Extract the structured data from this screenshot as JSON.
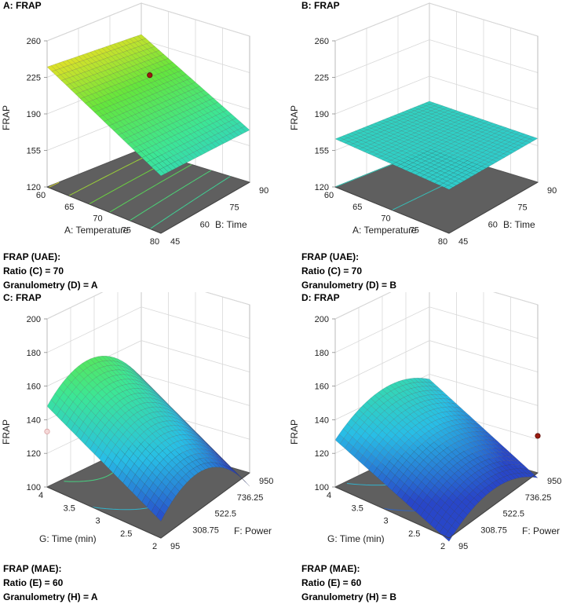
{
  "chart_data": [
    {
      "type": "surface3d",
      "title": "A: FRAP",
      "zlabel": "FRAP",
      "xlabel": "A: Temperature",
      "ylabel": "B: Time",
      "zlim": [
        120,
        260
      ],
      "z_ticks": [
        "120",
        "155",
        "190",
        "225",
        "260"
      ],
      "x_ticks": [
        "60",
        "65",
        "70",
        "75",
        "80"
      ],
      "y_ticks": [
        "45",
        "60",
        "75",
        "90"
      ],
      "xlim": [
        60,
        80
      ],
      "ylim": [
        45,
        90
      ],
      "surface": {
        "base": 235,
        "ax": -60,
        "ay": -5,
        "axx": 0,
        "ayy": 0,
        "axy": 0
      },
      "design_points": [
        {
          "x": 70,
          "y": 67.5,
          "z": 228
        }
      ],
      "caption": [
        "FRAP (UAE):",
        "Ratio (C) = 70",
        "Granulometry (D) = A"
      ]
    },
    {
      "type": "surface3d",
      "title": "B: FRAP",
      "zlabel": "FRAP",
      "xlabel": "A: Temperature",
      "ylabel": "B: Time",
      "zlim": [
        120,
        260
      ],
      "z_ticks": [
        "120",
        "155",
        "190",
        "225",
        "260"
      ],
      "x_ticks": [
        "60",
        "65",
        "70",
        "75",
        "80"
      ],
      "y_ticks": [
        "45",
        "60",
        "75",
        "90"
      ],
      "xlim": [
        60,
        80
      ],
      "ylim": [
        45,
        90
      ],
      "surface": {
        "base": 166,
        "ax": -4,
        "ay": 0,
        "axx": 0,
        "ayy": 0,
        "axy": 0
      },
      "design_points": [],
      "caption": [
        "FRAP (UAE):",
        "Ratio (C) = 70",
        "Granulometry (D) = B"
      ]
    },
    {
      "type": "surface3d",
      "title": "C: FRAP",
      "zlabel": "FRAP",
      "xlabel": "G: Time (min)",
      "ylabel": "F: Power",
      "zlim": [
        100,
        200
      ],
      "z_ticks": [
        "100",
        "120",
        "140",
        "160",
        "180",
        "200"
      ],
      "x_ticks": [
        "4",
        "3.5",
        "3",
        "2.5",
        "2"
      ],
      "y_ticks": [
        "95",
        "308.75",
        "522.5",
        "736.25",
        "950"
      ],
      "xlim": [
        4,
        2
      ],
      "ylim": [
        95,
        950
      ],
      "surface": {
        "base": 148,
        "ax": -38,
        "ay": 72,
        "axx": 0,
        "ayy": -82,
        "axy": -8
      },
      "design_points": [
        {
          "x": 4,
          "y": 950,
          "z": 200
        },
        {
          "x": 4,
          "y": 95,
          "z": 133
        }
      ],
      "caption": [
        "FRAP (MAE):",
        "Ratio (E) = 60",
        "Granulometry (H) = A"
      ]
    },
    {
      "type": "surface3d",
      "title": "D: FRAP",
      "zlabel": "FRAP",
      "xlabel": "G: Time (min)",
      "ylabel": "F: Power",
      "zlim": [
        100,
        200
      ],
      "z_ticks": [
        "100",
        "120",
        "140",
        "160",
        "180",
        "200"
      ],
      "x_ticks": [
        "4",
        "3.5",
        "3",
        "2.5",
        "2"
      ],
      "y_ticks": [
        "95",
        "308.75",
        "522.5",
        "736.25",
        "950"
      ],
      "xlim": [
        4,
        2
      ],
      "ylim": [
        95,
        950
      ],
      "surface": {
        "base": 128,
        "ax": -30,
        "ay": 57,
        "axx": 0,
        "ayy": -48,
        "axy": -10
      },
      "design_points": [
        {
          "x": 2,
          "y": 950,
          "z": 122
        }
      ],
      "caption": [
        "FRAP (MAE):",
        "Ratio (E) = 60",
        "Granulometry (H) = B"
      ]
    }
  ]
}
